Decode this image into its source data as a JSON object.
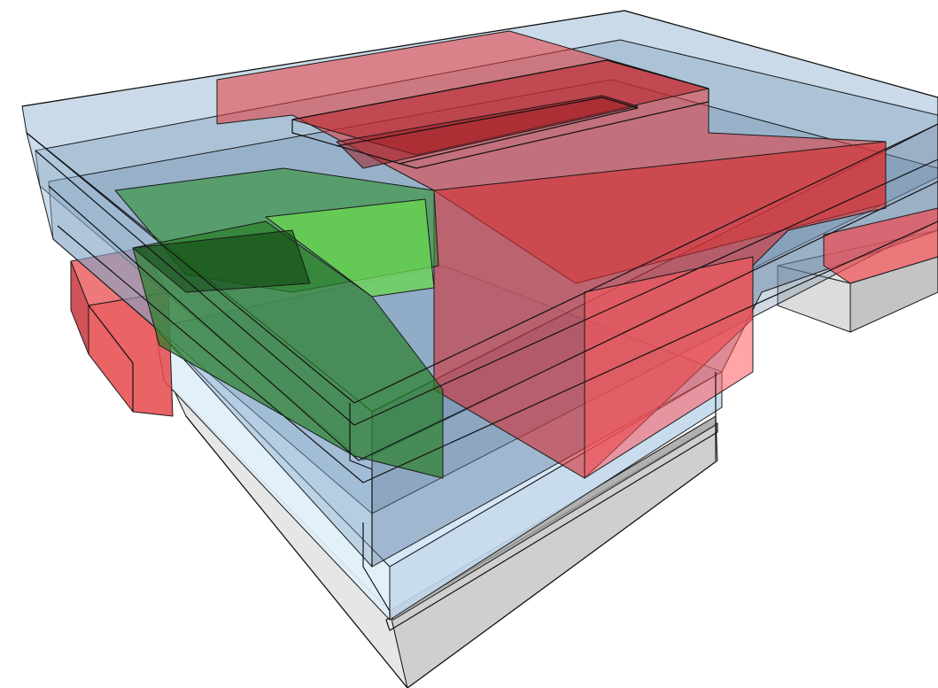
{
  "diagram": {
    "kind": "isometric-translucent-volumes",
    "palette": {
      "base": "#d9d9d9",
      "base_dark": "#bdbdbd",
      "base_light": "#ededed",
      "blue_volume": "#7f9fbf",
      "blue_light": "#c9dff2",
      "red_volume": "#e0312f",
      "green_volume": "#2f8f2f",
      "green_bright": "#6ad84f",
      "outline": "#111111"
    },
    "layers": [
      {
        "id": "base",
        "color_key": "base"
      },
      {
        "id": "light-blue",
        "color_key": "blue_light"
      },
      {
        "id": "blue-levels",
        "color_key": "blue_volume"
      },
      {
        "id": "red-volumes",
        "color_key": "red_volume"
      },
      {
        "id": "green-volume",
        "color_key": "green_volume"
      }
    ]
  }
}
